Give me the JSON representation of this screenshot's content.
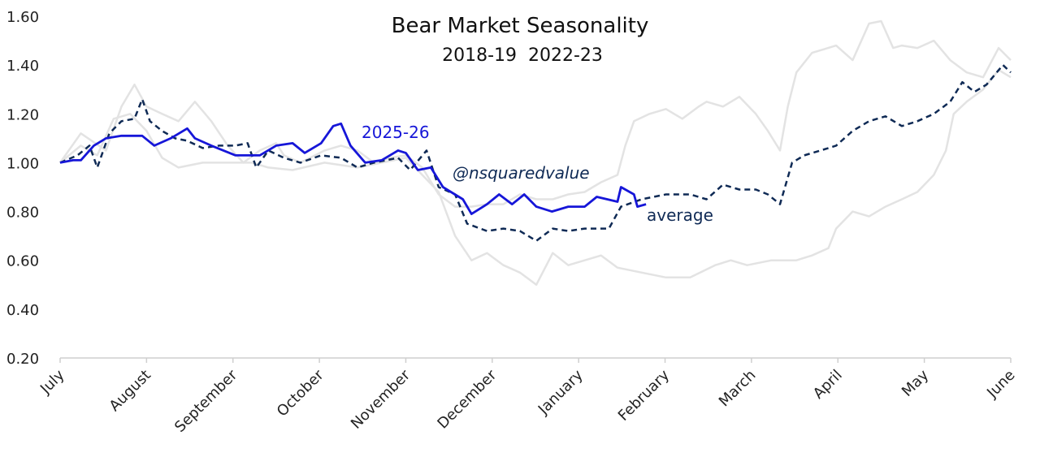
{
  "chart_data": {
    "type": "line",
    "title": "Bear Market Seasonality",
    "subtitle": "2018-19  2022-23",
    "xlabel": "",
    "ylabel": "",
    "x_ticks": [
      "July",
      "August",
      "September",
      "October",
      "November",
      "December",
      "January",
      "February",
      "March",
      "April",
      "May",
      "June"
    ],
    "x_unit": "months from July (tick index)",
    "xlim": [
      0,
      11
    ],
    "ylim": [
      0.2,
      1.6
    ],
    "y_ticks": [
      "0.20",
      "0.40",
      "0.60",
      "0.80",
      "1.00",
      "1.20",
      "1.40",
      "1.60"
    ],
    "grid": false,
    "annotations": {
      "current_label": "2025-26",
      "watermark": "@nsquaredvalue",
      "average_label": "average"
    },
    "colors": {
      "current": "#1616d8",
      "average": "#0f2a55",
      "history": "#e3e3e3"
    },
    "series": [
      {
        "style": "history",
        "x": [
          0,
          0.24,
          0.53,
          0.71,
          0.86,
          1.0,
          1.18,
          1.37,
          1.56,
          1.75,
          1.94,
          2.12,
          2.31,
          2.5,
          2.59,
          2.78,
          3.06,
          3.25,
          3.44,
          3.63,
          3.82,
          4.0,
          4.19,
          4.38,
          4.57,
          4.76,
          4.94,
          5.13,
          5.32,
          5.51,
          5.7,
          5.88,
          6.07,
          6.26,
          6.45,
          6.54,
          6.64,
          6.82,
          7.01,
          7.2,
          7.39,
          7.48,
          7.67,
          7.86,
          8.05,
          8.19,
          8.33,
          8.42,
          8.52,
          8.7,
          8.98,
          9.17,
          9.36,
          9.5,
          9.64,
          9.74,
          9.92,
          10.11,
          10.3,
          10.49,
          10.68,
          10.86,
          11
        ],
        "y": [
          1.0,
          1.12,
          1.05,
          1.23,
          1.32,
          1.23,
          1.2,
          1.17,
          1.25,
          1.17,
          1.07,
          1.0,
          1.05,
          1.08,
          1.03,
          1.0,
          1.05,
          1.07,
          1.05,
          1.0,
          1.02,
          1.03,
          0.98,
          0.87,
          0.82,
          0.82,
          0.83,
          0.83,
          0.87,
          0.85,
          0.85,
          0.87,
          0.88,
          0.92,
          0.95,
          1.07,
          1.17,
          1.2,
          1.22,
          1.18,
          1.23,
          1.25,
          1.23,
          1.27,
          1.2,
          1.13,
          1.05,
          1.23,
          1.37,
          1.45,
          1.48,
          1.42,
          1.57,
          1.58,
          1.47,
          1.48,
          1.47,
          1.5,
          1.42,
          1.37,
          1.35,
          1.47,
          1.42
        ]
      },
      {
        "style": "history",
        "x": [
          0,
          0.24,
          0.43,
          0.62,
          0.81,
          1.0,
          1.18,
          1.37,
          1.65,
          2.03,
          2.22,
          2.41,
          2.69,
          3.06,
          3.44,
          3.72,
          4.0,
          4.19,
          4.38,
          4.57,
          4.76,
          4.94,
          5.13,
          5.32,
          5.51,
          5.7,
          5.88,
          6.07,
          6.26,
          6.45,
          6.73,
          7.01,
          7.29,
          7.58,
          7.76,
          7.95,
          8.23,
          8.52,
          8.7,
          8.89,
          8.98,
          9.17,
          9.36,
          9.55,
          9.74,
          9.92,
          10.11,
          10.25,
          10.34,
          10.49,
          10.68,
          10.86,
          11
        ],
        "y": [
          1.0,
          1.07,
          1.03,
          1.18,
          1.2,
          1.13,
          1.02,
          0.98,
          1.0,
          1.0,
          1.0,
          0.98,
          0.97,
          1.0,
          0.98,
          1.0,
          1.02,
          0.95,
          0.88,
          0.7,
          0.6,
          0.63,
          0.58,
          0.55,
          0.5,
          0.63,
          0.58,
          0.6,
          0.62,
          0.57,
          0.55,
          0.53,
          0.53,
          0.58,
          0.6,
          0.58,
          0.6,
          0.6,
          0.62,
          0.65,
          0.73,
          0.8,
          0.78,
          0.82,
          0.85,
          0.88,
          0.95,
          1.05,
          1.2,
          1.25,
          1.3,
          1.38,
          1.35
        ]
      },
      {
        "name": "average",
        "style": "average",
        "x": [
          0,
          0.2,
          0.34,
          0.43,
          0.57,
          0.71,
          0.86,
          0.95,
          1.04,
          1.18,
          1.33,
          1.47,
          1.65,
          1.84,
          2.03,
          2.17,
          2.27,
          2.41,
          2.59,
          2.78,
          3.02,
          3.25,
          3.44,
          3.63,
          3.91,
          4.05,
          4.24,
          4.38,
          4.57,
          4.71,
          4.94,
          5.13,
          5.32,
          5.51,
          5.7,
          5.88,
          6.07,
          6.35,
          6.49,
          6.73,
          7.01,
          7.29,
          7.48,
          7.67,
          7.86,
          8.05,
          8.19,
          8.33,
          8.47,
          8.61,
          8.8,
          8.98,
          9.17,
          9.36,
          9.55,
          9.74,
          9.92,
          10.11,
          10.3,
          10.44,
          10.58,
          10.72,
          10.91,
          11
        ],
        "y": [
          1.0,
          1.03,
          1.07,
          0.98,
          1.12,
          1.17,
          1.18,
          1.26,
          1.17,
          1.13,
          1.1,
          1.09,
          1.06,
          1.07,
          1.07,
          1.08,
          0.98,
          1.05,
          1.02,
          1.0,
          1.03,
          1.02,
          0.98,
          1.0,
          1.02,
          0.97,
          1.05,
          0.9,
          0.87,
          0.75,
          0.72,
          0.73,
          0.72,
          0.68,
          0.73,
          0.72,
          0.73,
          0.73,
          0.82,
          0.85,
          0.87,
          0.87,
          0.85,
          0.91,
          0.89,
          0.89,
          0.87,
          0.83,
          1.0,
          1.03,
          1.05,
          1.07,
          1.13,
          1.17,
          1.19,
          1.15,
          1.17,
          1.2,
          1.25,
          1.33,
          1.29,
          1.32,
          1.4,
          1.37
        ]
      },
      {
        "name": "2025-26",
        "style": "current",
        "x": [
          0,
          0.15,
          0.24,
          0.39,
          0.53,
          0.71,
          0.95,
          1.09,
          1.28,
          1.47,
          1.56,
          1.75,
          2.03,
          2.31,
          2.5,
          2.69,
          2.83,
          3.02,
          3.16,
          3.25,
          3.36,
          3.53,
          3.72,
          3.91,
          4.0,
          4.14,
          4.29,
          4.43,
          4.66,
          4.76,
          4.94,
          5.08,
          5.23,
          5.37,
          5.51,
          5.69,
          5.88,
          6.07,
          6.21,
          6.45,
          6.49,
          6.64,
          6.68,
          6.78
        ],
        "y": [
          1.0,
          1.01,
          1.01,
          1.07,
          1.1,
          1.11,
          1.11,
          1.07,
          1.1,
          1.14,
          1.1,
          1.07,
          1.03,
          1.03,
          1.07,
          1.08,
          1.04,
          1.08,
          1.15,
          1.16,
          1.07,
          1.0,
          1.01,
          1.05,
          1.04,
          0.97,
          0.98,
          0.9,
          0.85,
          0.79,
          0.83,
          0.87,
          0.83,
          0.87,
          0.82,
          0.8,
          0.82,
          0.82,
          0.86,
          0.84,
          0.9,
          0.87,
          0.82,
          0.83
        ]
      }
    ]
  }
}
